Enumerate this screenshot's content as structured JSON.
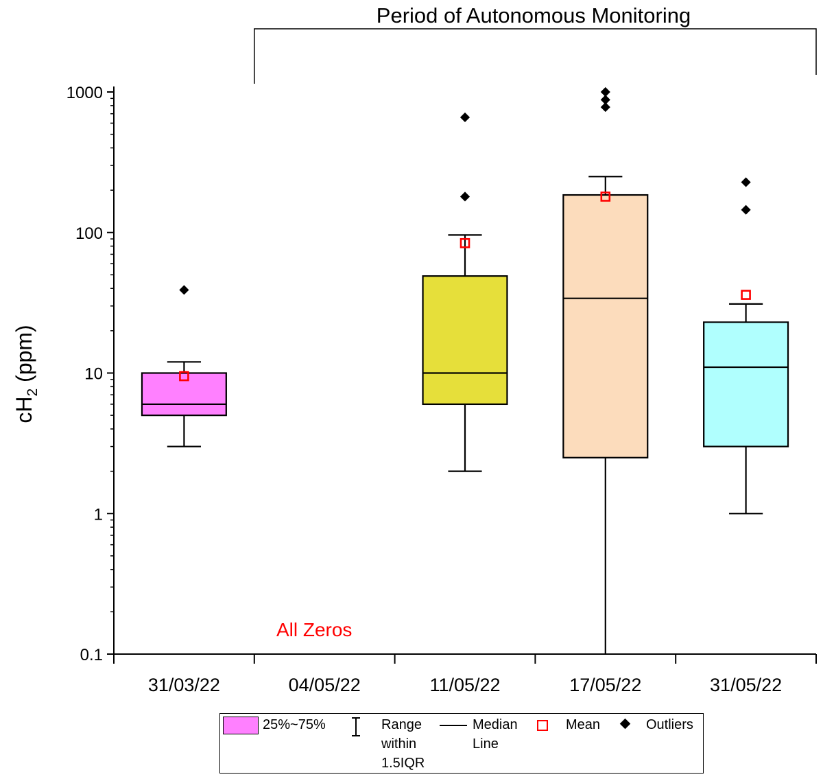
{
  "chart_data": {
    "type": "box",
    "title": "Period of Autonomous Monitoring",
    "ylabel_main": "cH",
    "ylabel_sub": "2",
    "ylabel_unit": " (ppm)",
    "yscale": "log",
    "ylim": [
      0.1,
      1000
    ],
    "yticks": [
      {
        "value": 0.1,
        "label": "0.1"
      },
      {
        "value": 1,
        "label": "1"
      },
      {
        "value": 10,
        "label": "10"
      },
      {
        "value": 100,
        "label": "100"
      },
      {
        "value": 1000,
        "label": "1000"
      }
    ],
    "categories": [
      "31/03/22",
      "04/05/22",
      "11/05/22",
      "17/05/22",
      "31/05/22"
    ],
    "bracket_span": [
      "04/05/22",
      "31/05/22"
    ],
    "annotation": {
      "text": "All Zeros",
      "category": "04/05/22",
      "y": 0.15,
      "color": "#ff0000"
    },
    "boxes": [
      {
        "category": "31/03/22",
        "q1": 5,
        "median": 6,
        "q3": 10,
        "whisker_low": 3,
        "whisker_high": 12,
        "mean": 9.5,
        "outliers": [
          39
        ],
        "color": "#ff80ff"
      },
      {
        "category": "11/05/22",
        "q1": 6,
        "median": 10,
        "q3": 49,
        "whisker_low": 2,
        "whisker_high": 96,
        "mean": 84,
        "outliers": [
          180,
          660
        ],
        "color": "#e6df3a"
      },
      {
        "category": "17/05/22",
        "q1": 2.5,
        "median": 34,
        "q3": 185,
        "whisker_low": 0.1,
        "whisker_high": 250,
        "mean": 180,
        "outliers": [
          780,
          880,
          1000
        ],
        "color": "#fcdcbc"
      },
      {
        "category": "31/05/22",
        "q1": 3,
        "median": 11,
        "q3": 23,
        "whisker_low": 1,
        "whisker_high": 31,
        "mean": 36,
        "outliers": [
          145,
          228
        ],
        "color": "#b0fffe"
      }
    ],
    "mean_color": "#ff0000",
    "outlier_color": "#000000",
    "legend": {
      "box_label": "25%~75%",
      "range_label": "Range\nwithin\n1.5IQR",
      "median_label": "Median\nLine",
      "mean_label": "Mean",
      "outlier_label": "Outliers"
    }
  }
}
